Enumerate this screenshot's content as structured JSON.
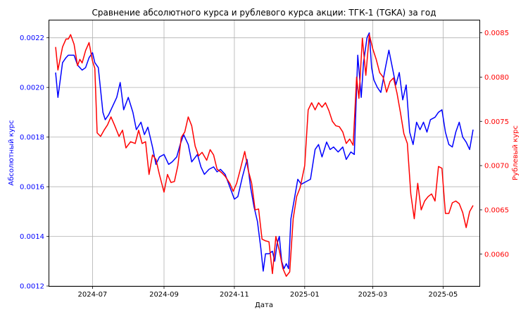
{
  "chart_data": {
    "type": "line",
    "title": "Сравнение абсолютного курса и рублевого курса акции: ТГК-1 (TGKA) за год",
    "xlabel": "Дата",
    "ylabel_left": "Абсолютный курс",
    "ylabel_right": "Рублевый курс",
    "grid": true,
    "x_ticks": [
      "2024-07",
      "2024-09",
      "2024-11",
      "2025-01",
      "2025-03",
      "2025-05"
    ],
    "ylim_left": [
      0.0012,
      0.00227
    ],
    "yticks_left": [
      "0.0012",
      "0.0014",
      "0.0016",
      "0.0018",
      "0.0020",
      "0.0022"
    ],
    "ylim_right": [
      0.00564,
      0.00864
    ],
    "yticks_right": [
      "0.0060",
      "0.0065",
      "0.0070",
      "0.0075",
      "0.0080",
      "0.0085"
    ],
    "colors": {
      "left": "#0000ff",
      "right": "#ff0000",
      "grid": "#b0b0b0"
    },
    "series": [
      {
        "axis": "left",
        "x": [
          "2024-05-30",
          "2024-06-01",
          "2024-06-05",
          "2024-06-08",
          "2024-06-10",
          "2024-06-15",
          "2024-06-18",
          "2024-06-22",
          "2024-06-25",
          "2024-06-28",
          "2024-07-01",
          "2024-07-03",
          "2024-07-06",
          "2024-07-10",
          "2024-07-12",
          "2024-07-15",
          "2024-07-18",
          "2024-07-22",
          "2024-07-25",
          "2024-07-28",
          "2024-08-01",
          "2024-08-05",
          "2024-08-08",
          "2024-08-12",
          "2024-08-15",
          "2024-08-18",
          "2024-08-22",
          "2024-08-25",
          "2024-08-28",
          "2024-09-01",
          "2024-09-05",
          "2024-09-08",
          "2024-09-12",
          "2024-09-15",
          "2024-09-18",
          "2024-09-22",
          "2024-09-25",
          "2024-09-30",
          "2024-10-03",
          "2024-10-06",
          "2024-10-10",
          "2024-10-14",
          "2024-10-17",
          "2024-10-20",
          "2024-10-24",
          "2024-10-28",
          "2024-11-01",
          "2024-11-04",
          "2024-11-08",
          "2024-11-12",
          "2024-11-15",
          "2024-11-18",
          "2024-11-21",
          "2024-11-24",
          "2024-11-26",
          "2024-11-28",
          "2024-12-01",
          "2024-12-04",
          "2024-12-06",
          "2024-12-08",
          "2024-12-10",
          "2024-12-12",
          "2024-12-14",
          "2024-12-16",
          "2024-12-18",
          "2024-12-20",
          "2024-12-23",
          "2024-12-26",
          "2024-12-29",
          "2025-01-02",
          "2025-01-06",
          "2025-01-10",
          "2025-01-13",
          "2025-01-16",
          "2025-01-20",
          "2025-01-23",
          "2025-01-26",
          "2025-01-30",
          "2025-02-03",
          "2025-02-06",
          "2025-02-10",
          "2025-02-13",
          "2025-02-16",
          "2025-02-19",
          "2025-02-21",
          "2025-02-24",
          "2025-02-26",
          "2025-02-28",
          "2025-03-02",
          "2025-03-05",
          "2025-03-08",
          "2025-03-12",
          "2025-03-15",
          "2025-03-18",
          "2025-03-21",
          "2025-03-24",
          "2025-03-27",
          "2025-03-30",
          "2025-04-02",
          "2025-04-05",
          "2025-04-08",
          "2025-04-11",
          "2025-04-14",
          "2025-04-17",
          "2025-04-20",
          "2025-04-24",
          "2025-04-27",
          "2025-04-30",
          "2025-05-03",
          "2025-05-06",
          "2025-05-09",
          "2025-05-12",
          "2025-05-15",
          "2025-05-18",
          "2025-05-21",
          "2025-05-24",
          "2025-05-27"
        ],
        "y": [
          0.00206,
          0.00196,
          0.0021,
          0.00212,
          0.00213,
          0.00213,
          0.00209,
          0.00207,
          0.00208,
          0.00212,
          0.00214,
          0.0021,
          0.00208,
          0.0019,
          0.00187,
          0.00189,
          0.00192,
          0.00196,
          0.00202,
          0.00191,
          0.00196,
          0.0019,
          0.00183,
          0.00186,
          0.00181,
          0.00184,
          0.00176,
          0.00169,
          0.00172,
          0.00173,
          0.00169,
          0.0017,
          0.00172,
          0.00177,
          0.00181,
          0.00177,
          0.0017,
          0.00173,
          0.00168,
          0.00165,
          0.00167,
          0.00168,
          0.00166,
          0.00167,
          0.00165,
          0.0016,
          0.00155,
          0.00156,
          0.00164,
          0.00171,
          0.0016,
          0.00152,
          0.00146,
          0.00135,
          0.00126,
          0.00133,
          0.00133,
          0.00134,
          0.0013,
          0.00137,
          0.0014,
          0.0013,
          0.00127,
          0.00129,
          0.00127,
          0.00147,
          0.00155,
          0.00163,
          0.00161,
          0.00162,
          0.00163,
          0.00175,
          0.00177,
          0.00172,
          0.00178,
          0.00175,
          0.00176,
          0.00174,
          0.00176,
          0.00171,
          0.00174,
          0.00173,
          0.00213,
          0.00196,
          0.0021,
          0.0022,
          0.00222,
          0.00208,
          0.00203,
          0.002,
          0.00198,
          0.00208,
          0.00215,
          0.00208,
          0.00201,
          0.00206,
          0.00195,
          0.00201,
          0.00182,
          0.00177,
          0.00186,
          0.00183,
          0.00186,
          0.00182,
          0.00187,
          0.00188,
          0.0019,
          0.00191,
          0.00182,
          0.00177,
          0.00176,
          0.00182,
          0.00186,
          0.0018,
          0.00178,
          0.00175,
          0.00183
        ]
      },
      {
        "axis": "right",
        "x": [
          "2024-05-30",
          "2024-06-01",
          "2024-06-05",
          "2024-06-08",
          "2024-06-10",
          "2024-06-12",
          "2024-06-15",
          "2024-06-18",
          "2024-06-20",
          "2024-06-22",
          "2024-06-25",
          "2024-06-28",
          "2024-07-01",
          "2024-07-03",
          "2024-07-05",
          "2024-07-08",
          "2024-07-11",
          "2024-07-14",
          "2024-07-17",
          "2024-07-20",
          "2024-07-24",
          "2024-07-27",
          "2024-07-30",
          "2024-08-03",
          "2024-08-07",
          "2024-08-10",
          "2024-08-13",
          "2024-08-16",
          "2024-08-19",
          "2024-08-22",
          "2024-08-25",
          "2024-08-28",
          "2024-09-01",
          "2024-09-04",
          "2024-09-07",
          "2024-09-10",
          "2024-09-13",
          "2024-09-16",
          "2024-09-19",
          "2024-09-22",
          "2024-09-25",
          "2024-09-28",
          "2024-10-01",
          "2024-10-04",
          "2024-10-08",
          "2024-10-11",
          "2024-10-14",
          "2024-10-17",
          "2024-10-21",
          "2024-10-24",
          "2024-10-28",
          "2024-10-31",
          "2024-11-03",
          "2024-11-06",
          "2024-11-10",
          "2024-11-13",
          "2024-11-16",
          "2024-11-19",
          "2024-11-22",
          "2024-11-25",
          "2024-11-28",
          "2024-12-01",
          "2024-12-04",
          "2024-12-07",
          "2024-12-10",
          "2024-12-13",
          "2024-12-16",
          "2024-12-19",
          "2024-12-22",
          "2024-12-25",
          "2024-12-28",
          "2025-01-01",
          "2025-01-04",
          "2025-01-07",
          "2025-01-10",
          "2025-01-13",
          "2025-01-16",
          "2025-01-19",
          "2025-01-22",
          "2025-01-25",
          "2025-01-28",
          "2025-01-31",
          "2025-02-03",
          "2025-02-06",
          "2025-02-09",
          "2025-02-12",
          "2025-02-15",
          "2025-02-17",
          "2025-02-20",
          "2025-02-23",
          "2025-02-26",
          "2025-03-01",
          "2025-03-04",
          "2025-03-07",
          "2025-03-10",
          "2025-03-13",
          "2025-03-16",
          "2025-03-19",
          "2025-03-22",
          "2025-03-25",
          "2025-03-28",
          "2025-03-31",
          "2025-04-03",
          "2025-04-06",
          "2025-04-09",
          "2025-04-12",
          "2025-04-15",
          "2025-04-18",
          "2025-04-21",
          "2025-04-24",
          "2025-04-27",
          "2025-04-30",
          "2025-05-03",
          "2025-05-06",
          "2025-05-09",
          "2025-05-12",
          "2025-05-15",
          "2025-05-18",
          "2025-05-21",
          "2025-05-24",
          "2025-05-27"
        ],
        "y": [
          0.00834,
          0.00808,
          0.00834,
          0.00843,
          0.00843,
          0.00848,
          0.00837,
          0.00813,
          0.0082,
          0.00816,
          0.0083,
          0.00839,
          0.00818,
          0.0081,
          0.00737,
          0.00733,
          0.0074,
          0.00746,
          0.00755,
          0.00746,
          0.00733,
          0.0074,
          0.0072,
          0.00727,
          0.00725,
          0.0074,
          0.00725,
          0.00727,
          0.0069,
          0.00712,
          0.00707,
          0.0069,
          0.0067,
          0.0069,
          0.00681,
          0.00682,
          0.007,
          0.00732,
          0.00738,
          0.00755,
          0.00745,
          0.00722,
          0.00711,
          0.00715,
          0.00706,
          0.00718,
          0.00712,
          0.00696,
          0.00692,
          0.00688,
          0.0068,
          0.00671,
          0.0068,
          0.00695,
          0.00716,
          0.00695,
          0.0068,
          0.0065,
          0.00651,
          0.00617,
          0.00615,
          0.00614,
          0.00578,
          0.0062,
          0.00604,
          0.00584,
          0.00575,
          0.0058,
          0.0064,
          0.00665,
          0.00675,
          0.007,
          0.00763,
          0.00771,
          0.00763,
          0.00771,
          0.00766,
          0.00771,
          0.00762,
          0.0075,
          0.00745,
          0.00744,
          0.00738,
          0.00725,
          0.0073,
          0.00723,
          0.008,
          0.00776,
          0.00844,
          0.00802,
          0.00848,
          0.00832,
          0.0082,
          0.00805,
          0.008,
          0.00783,
          0.00795,
          0.00799,
          0.00782,
          0.0076,
          0.00736,
          0.00725,
          0.00668,
          0.0064,
          0.0068,
          0.0065,
          0.0066,
          0.00665,
          0.00668,
          0.0066,
          0.00699,
          0.00697,
          0.00646,
          0.00646,
          0.00658,
          0.0066,
          0.00657,
          0.00647,
          0.0063,
          0.00648,
          0.00655
        ]
      }
    ]
  }
}
